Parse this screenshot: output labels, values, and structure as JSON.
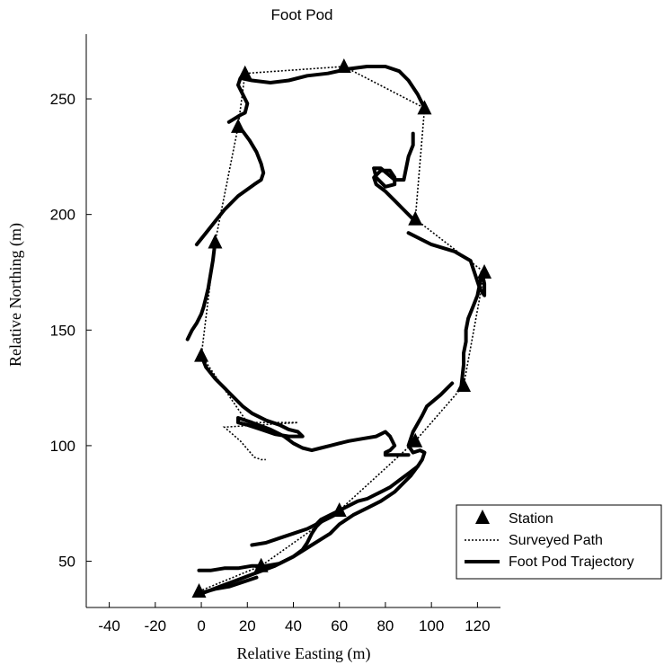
{
  "chart_data": {
    "type": "line",
    "title": "Foot Pod",
    "xlabel": "Relative Easting (m)",
    "ylabel": "Relative Northing (m)",
    "xlim": [
      -50,
      130
    ],
    "ylim": [
      30,
      278
    ],
    "xticks": [
      -40,
      -20,
      0,
      20,
      40,
      60,
      80,
      100,
      120
    ],
    "yticks": [
      50,
      100,
      150,
      200,
      250
    ],
    "grid": false,
    "legend_position": "bottom-right",
    "series": [
      {
        "name": "Station",
        "style": "triangle-marker",
        "color": "#000000",
        "x": [
          -1,
          26,
          60,
          93,
          114,
          123,
          93,
          97,
          62,
          19,
          16,
          6,
          0
        ],
        "y": [
          37,
          48,
          72,
          102,
          126,
          175,
          198,
          246,
          264,
          261,
          238,
          188,
          139
        ]
      },
      {
        "name": "Surveyed Path",
        "style": "dotted",
        "color": "#000000",
        "x": [
          -1,
          26,
          60,
          93,
          114,
          123,
          93,
          97,
          62,
          19,
          16,
          6,
          0,
          20,
          42,
          10,
          17,
          23,
          26,
          28
        ],
        "y": [
          37,
          48,
          72,
          102,
          126,
          175,
          198,
          246,
          264,
          261,
          238,
          188,
          139,
          110,
          110,
          108,
          102,
          95,
          94,
          94
        ]
      },
      {
        "name": "Foot Pod Trajectory",
        "style": "solid-thick",
        "color": "#000000",
        "segments": [
          {
            "x": [
              0,
              8,
              16,
              24,
              32,
              40,
              48,
              56,
              60,
              66,
              72,
              78,
              84,
              88,
              91,
              94,
              96,
              97,
              95,
              92,
              90,
              92,
              96,
              98,
              104,
              109
            ],
            "y": [
              36,
              39,
              42,
              45,
              48,
              52,
              57,
              62,
              66,
              70,
              73,
              76,
              80,
              84,
              87,
              91,
              94,
              97,
              98,
              97,
              100,
              106,
              113,
              117,
              122,
              127
            ]
          },
          {
            "x": [
              113,
              114,
              114,
              115,
              115,
              116,
              118,
              120,
              121,
              122,
              123,
              123,
              121,
              117,
              110,
              100,
              90
            ],
            "y": [
              126,
              135,
              140,
              145,
              150,
              155,
              160,
              165,
              170,
              175,
              170,
              165,
              168,
              180,
              184,
              187,
              192
            ]
          },
          {
            "x": [
              92,
              88,
              84,
              80,
              76,
              75,
              78,
              82,
              84,
              84,
              80,
              76,
              75,
              78,
              84,
              88,
              90,
              92,
              92
            ],
            "y": [
              198,
              202,
              206,
              210,
              213,
              216,
              219,
              219,
              216,
              213,
              212,
              216,
              220,
              220,
              215,
              215,
              225,
              230,
              235
            ]
          },
          {
            "x": [
              97,
              94,
              90,
              86,
              80,
              72,
              64,
              55,
              46,
              38,
              30,
              22,
              17,
              16,
              20,
              19,
              17,
              12
            ],
            "y": [
              246,
              252,
              258,
              262,
              264,
              264,
              263,
              261,
              260,
              258,
              257,
              258,
              259,
              256,
              248,
              244,
              243,
              240
            ]
          },
          {
            "x": [
              16,
              18,
              21,
              24,
              26,
              27,
              26,
              23,
              16,
              10,
              6,
              2,
              -2
            ],
            "y": [
              238,
              236,
              232,
              227,
              222,
              218,
              215,
              213,
              208,
              202,
              197,
              192,
              187
            ]
          },
          {
            "x": [
              6,
              5,
              4,
              3,
              2,
              1,
              0,
              -2,
              -4,
              -6
            ],
            "y": [
              188,
              180,
              174,
              168,
              164,
              160,
              157,
              153,
              150,
              146
            ]
          },
          {
            "x": [
              0,
              2,
              6,
              10,
              14,
              18,
              22,
              28,
              34,
              38,
              42,
              44,
              38,
              32,
              26,
              20,
              16,
              16,
              22,
              30,
              36,
              40,
              44,
              48,
              52,
              56,
              60,
              64,
              70,
              76,
              80,
              82,
              84,
              82,
              80,
              80,
              86,
              90
            ],
            "y": [
              139,
              134,
              129,
              125,
              121,
              117,
              114,
              111,
              109,
              107,
              106,
              104,
              104,
              105,
              107,
              109,
              110,
              112,
              110,
              107,
              104,
              101,
              99,
              98,
              99,
              100,
              101,
              102,
              103,
              104,
              106,
              104,
              100,
              98,
              97,
              96,
              96,
              96
            ]
          },
          {
            "x": [
              22,
              28,
              34,
              40,
              46,
              50,
              52,
              56,
              60,
              64,
              68,
              72,
              74,
              78,
              82,
              86,
              90,
              94
            ],
            "y": [
              57,
              58,
              60,
              62,
              64,
              66,
              68,
              70,
              72,
              74,
              76,
              77,
              78,
              80,
              82,
              85,
              88,
              91
            ]
          },
          {
            "x": [
              -1,
              4,
              10,
              16,
              22,
              28,
              34,
              40,
              44,
              46,
              48,
              50,
              52,
              56,
              60
            ],
            "y": [
              46,
              46,
              47,
              47,
              48,
              48,
              49,
              52,
              55,
              58,
              62,
              65,
              67,
              69,
              71
            ]
          },
          {
            "x": [
              -1,
              6,
              12,
              18,
              24
            ],
            "y": [
              36,
              38,
              39,
              41,
              43
            ]
          }
        ]
      }
    ]
  }
}
